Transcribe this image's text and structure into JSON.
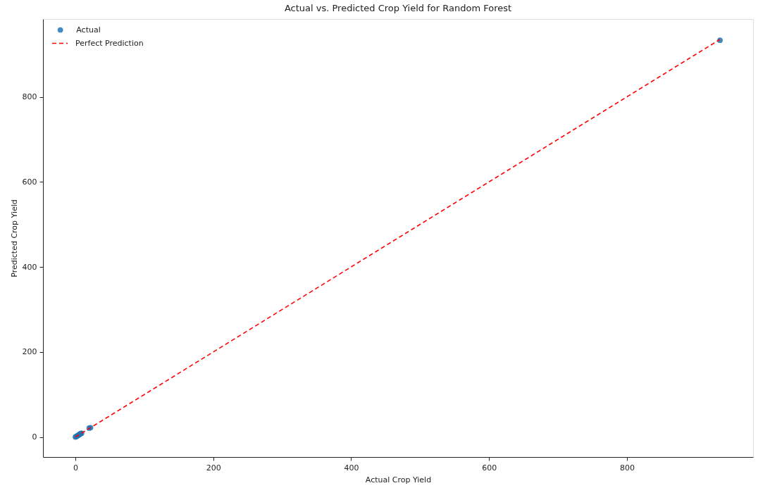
{
  "chart_data": {
    "type": "scatter",
    "title": "Actual vs. Predicted Crop Yield for Random Forest",
    "xlabel": "Actual Crop Yield",
    "ylabel": "Predicted Crop Yield",
    "xlim": [
      -47,
      983
    ],
    "ylim": [
      -47,
      983
    ],
    "xticks": [
      0,
      200,
      400,
      600,
      800
    ],
    "yticks": [
      0,
      200,
      400,
      600,
      800
    ],
    "grid": false,
    "legend": "top left",
    "series": [
      {
        "name": "Actual",
        "color": "#1f77b4",
        "marker": "circle",
        "x": [
          0,
          1,
          2,
          3,
          4,
          5,
          6,
          7,
          8,
          9,
          20,
          22,
          935
        ],
        "values": [
          0,
          1,
          2,
          3,
          4,
          5,
          6,
          8,
          8,
          9,
          21,
          22,
          933
        ]
      },
      {
        "name": "Perfect Prediction",
        "type": "line",
        "color": "#ff0000",
        "line_style": "dashed",
        "marker": "none",
        "x": [
          0,
          935
        ],
        "values": [
          0,
          935
        ]
      }
    ]
  }
}
